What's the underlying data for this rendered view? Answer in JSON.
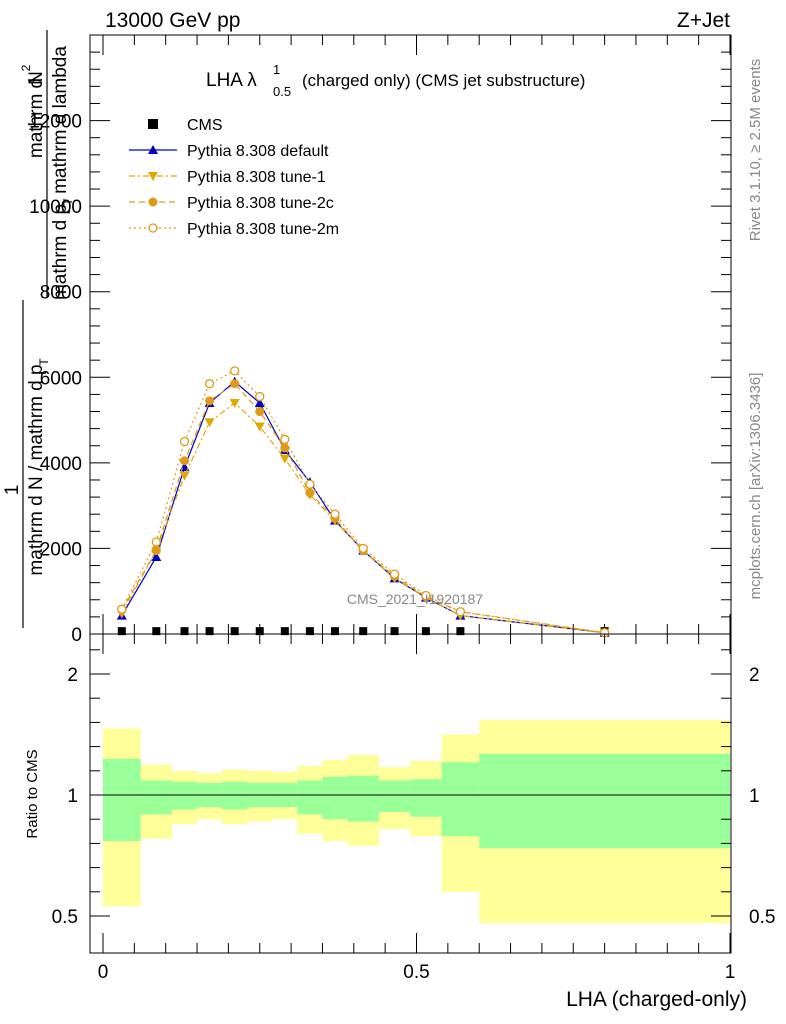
{
  "header": {
    "energy_label": "13000 GeV pp",
    "process_label": "Z+Jet"
  },
  "side_labels": {
    "rivet": "Rivet 3.1.10, ≥ 2.5M events",
    "mcplots": "mcplots.cern.ch [arXiv:1306.3436]"
  },
  "watermark": "CMS_2021_I1920187",
  "chart_data": [
    {
      "type": "line",
      "title_main": "LHA λ",
      "title_sup": "1",
      "title_sub": "0.5",
      "title_rest": "(charged only) (CMS jet substructure)",
      "ylabel_main": "mathrm dN / mathrm dp_T mathrm d lambda",
      "ylabel_parts": {
        "one": "1",
        "numerator": "mathrm d",
        "numerator_sup": "2",
        "numerator_n": "N",
        "denominator": "mathrm d p",
        "denominator_sub": "T",
        "denominator_rest": "mathrm d lambda",
        "prefix": "mathrm d N / mathrm d p",
        "prefix_sub": "T"
      },
      "ylabel_display": {
        "left_top": "mathrm d",
        "left_N": "N",
        "left_sup": "2",
        "left_den": "mathrm d p",
        "left_den_sub": "T",
        "left_den2": "mathrm d lambda",
        "outer_one": "1",
        "outer_den": "mathrm d N / mathrm d p",
        "outer_den_sub": "T"
      },
      "xlim": [
        -0.02,
        1.0
      ],
      "ylim": [
        0,
        14000
      ],
      "yticks": [
        0,
        2000,
        4000,
        6000,
        8000,
        10000,
        12000
      ],
      "ytick_labels": [
        "0",
        "2000",
        "4000",
        "6000",
        "8000",
        "10000",
        "12000"
      ],
      "legend_position": "top-left",
      "x": [
        0.03,
        0.085,
        0.13,
        0.17,
        0.21,
        0.25,
        0.29,
        0.33,
        0.37,
        0.415,
        0.465,
        0.515,
        0.57,
        0.8
      ],
      "series": [
        {
          "name": "CMS",
          "color": "#000000",
          "marker": "square",
          "values": [
            20,
            20,
            20,
            20,
            20,
            20,
            20,
            20,
            20,
            20,
            20,
            20,
            20,
            20
          ]
        },
        {
          "name": "Pythia 8.308 default",
          "color": "#0000cc",
          "marker": "triangle-up",
          "dash": "solid",
          "values": [
            430,
            1800,
            3900,
            5400,
            5900,
            5400,
            4300,
            3550,
            2650,
            1950,
            1300,
            850,
            430,
            30
          ]
        },
        {
          "name": "Pythia 8.308 tune-1",
          "color": "#e0a800",
          "marker": "triangle-down",
          "dash": "dashdot",
          "values": [
            480,
            1950,
            3700,
            4950,
            5400,
            4850,
            4100,
            3250,
            2650,
            1950,
            1300,
            850,
            430,
            30
          ]
        },
        {
          "name": "Pythia 8.308 tune-2c",
          "color": "#e09a1a",
          "marker": "circle",
          "dash": "dashed",
          "values": [
            560,
            1950,
            4050,
            5450,
            5850,
            5200,
            4350,
            3300,
            2700,
            1950,
            1350,
            870,
            520,
            30
          ]
        },
        {
          "name": "Pythia 8.308 tune-2m",
          "color": "#e09a1a",
          "marker": "circle-open",
          "dash": "dotted",
          "values": [
            580,
            2150,
            4500,
            5850,
            6150,
            5550,
            4550,
            3500,
            2800,
            2000,
            1400,
            900,
            520,
            30
          ]
        }
      ]
    },
    {
      "type": "area",
      "ylabel": "Ratio to CMS",
      "xlabel": "LHA (charged-only)",
      "xlim": [
        -0.02,
        1.0
      ],
      "ylim": [
        0.4,
        2.3
      ],
      "xticks": [
        0,
        0.5,
        1
      ],
      "xtick_labels": [
        "0",
        "0.5",
        "1"
      ],
      "yticks": [
        0.5,
        1,
        2
      ],
      "ytick_labels": [
        "0.5",
        "1",
        "2"
      ],
      "bin_edges": [
        0.0,
        0.06,
        0.11,
        0.15,
        0.19,
        0.23,
        0.27,
        0.31,
        0.35,
        0.39,
        0.44,
        0.49,
        0.54,
        0.6,
        1.0
      ],
      "bands": [
        {
          "name": "yellow",
          "color": "#ffff99",
          "lo": [
            0.54,
            0.82,
            0.88,
            0.9,
            0.88,
            0.89,
            0.9,
            0.84,
            0.81,
            0.79,
            0.86,
            0.83,
            0.6,
            0.47
          ],
          "hi": [
            1.55,
            1.25,
            1.2,
            1.18,
            1.21,
            1.2,
            1.19,
            1.24,
            1.29,
            1.33,
            1.23,
            1.28,
            1.5,
            1.62
          ]
        },
        {
          "name": "green",
          "color": "#99ff99",
          "lo": [
            0.81,
            0.92,
            0.94,
            0.95,
            0.94,
            0.95,
            0.95,
            0.92,
            0.9,
            0.89,
            0.93,
            0.91,
            0.83,
            0.78
          ],
          "hi": [
            1.3,
            1.12,
            1.11,
            1.1,
            1.11,
            1.1,
            1.1,
            1.12,
            1.15,
            1.16,
            1.12,
            1.13,
            1.27,
            1.34
          ]
        }
      ],
      "reference_line": 1
    }
  ]
}
